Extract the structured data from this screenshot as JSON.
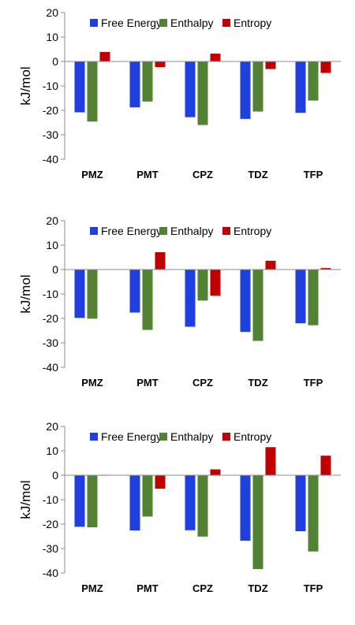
{
  "legend": {
    "free_energy": "Free Energy",
    "enthalpy": "Enthalpy",
    "entropy": "Entropy"
  },
  "colors": {
    "free_energy": "#1f3fe0",
    "enthalpy": "#548235",
    "entropy": "#c00000"
  },
  "chart_data": [
    {
      "type": "bar",
      "categories": [
        "PMZ",
        "PMT",
        "CPZ",
        "TDZ",
        "TFP"
      ],
      "ylabel": "kJ/mol",
      "ylim": [
        -40,
        20
      ],
      "yticks": [
        20,
        10,
        0,
        -10,
        -20,
        -30,
        -40
      ],
      "legend_position": "top",
      "grid": false,
      "series": [
        {
          "name": "Free Energy",
          "values": [
            -20.8,
            -18.8,
            -22.8,
            -23.5,
            -21.0
          ]
        },
        {
          "name": "Enthalpy",
          "values": [
            -24.6,
            -16.4,
            -26.0,
            -20.5,
            -16.0
          ]
        },
        {
          "name": "Entropy",
          "values": [
            3.9,
            -2.3,
            3.2,
            -3.1,
            -4.7
          ]
        }
      ]
    },
    {
      "type": "bar",
      "categories": [
        "PMZ",
        "PMT",
        "CPZ",
        "TDZ",
        "TFP"
      ],
      "ylabel": "kJ/mol",
      "ylim": [
        -40,
        20
      ],
      "yticks": [
        20,
        10,
        0,
        -10,
        -20,
        -30,
        -40
      ],
      "legend_position": "top",
      "grid": false,
      "series": [
        {
          "name": "Free Energy",
          "values": [
            -19.8,
            -17.6,
            -23.4,
            -25.5,
            -22.0
          ]
        },
        {
          "name": "Enthalpy",
          "values": [
            -20.1,
            -24.7,
            -12.7,
            -29.2,
            -22.8
          ]
        },
        {
          "name": "Entropy",
          "values": [
            0.0,
            7.1,
            -10.7,
            3.6,
            0.6
          ]
        }
      ]
    },
    {
      "type": "bar",
      "categories": [
        "PMZ",
        "PMT",
        "CPZ",
        "TDZ",
        "TFP"
      ],
      "ylabel": "kJ/mol",
      "ylim": [
        -40,
        20
      ],
      "yticks": [
        20,
        10,
        0,
        -10,
        -20,
        -30,
        -40
      ],
      "legend_position": "top",
      "grid": false,
      "series": [
        {
          "name": "Free Energy",
          "values": [
            -21.1,
            -22.6,
            -22.5,
            -26.8,
            -22.9
          ]
        },
        {
          "name": "Enthalpy",
          "values": [
            -21.3,
            -16.9,
            -25.1,
            -38.4,
            -31.2
          ]
        },
        {
          "name": "Entropy",
          "values": [
            0.2,
            -5.5,
            2.4,
            11.5,
            8.0
          ]
        }
      ]
    }
  ]
}
